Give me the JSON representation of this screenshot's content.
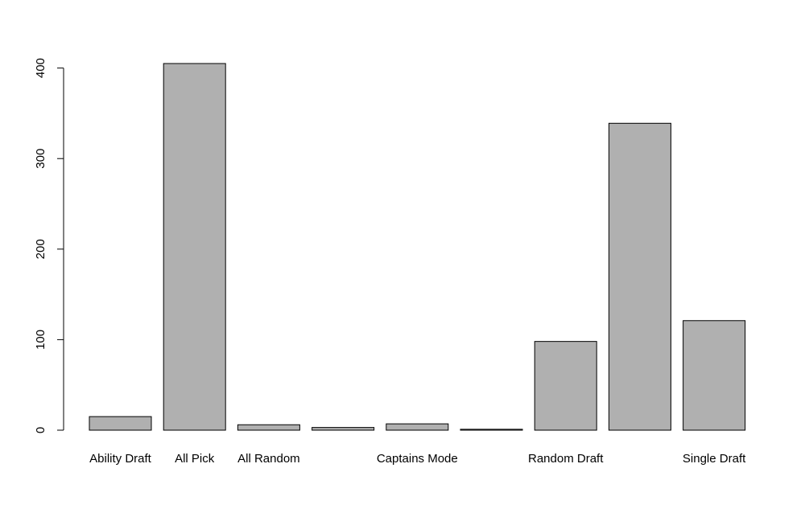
{
  "chart_data": {
    "type": "bar",
    "title": "",
    "xlabel": "",
    "ylabel": "",
    "categories": [
      "Ability Draft",
      "All Pick",
      "All Random",
      "",
      "Captains Mode",
      "",
      "Random Draft",
      "",
      "Single Draft"
    ],
    "values": [
      15,
      405,
      6,
      3,
      7,
      1,
      98,
      339,
      121
    ],
    "yticks": [
      0,
      100,
      200,
      300,
      400
    ],
    "ylim": [
      0,
      405
    ],
    "grid": false,
    "bar_color": "#b0b0b0",
    "bar_stroke": "#000000"
  }
}
